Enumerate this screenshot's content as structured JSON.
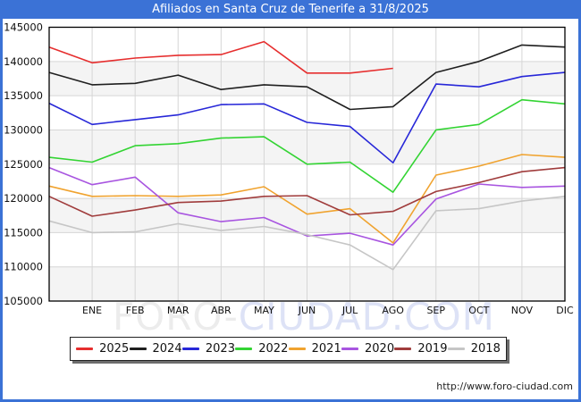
{
  "window": {
    "title": "Afiliados en Santa Cruz de Tenerife a 31/8/2025",
    "url": "http://www.foro-ciudad.com"
  },
  "colors": {
    "frame_blue": "#3b72d6",
    "band": "#f4f4f4",
    "grid": "#d6d6d6",
    "axis": "#000000",
    "tick_text": "#111111"
  },
  "watermark": {
    "left": "FORO-",
    "right": "CIUDAD.COM"
  },
  "chart_data": {
    "type": "line",
    "title": "Afiliados en Santa Cruz de Tenerife a 31/8/2025",
    "x_labels": [
      "ENE",
      "FEB",
      "MAR",
      "ABR",
      "MAY",
      "JUN",
      "JUL",
      "AGO",
      "SEP",
      "OCT",
      "NOV",
      "DIC"
    ],
    "y_ticks": [
      145000,
      140000,
      135000,
      130000,
      125000,
      120000,
      115000,
      110000,
      105000
    ],
    "ylim": [
      105000,
      145000
    ],
    "grid": true,
    "legend_position": "bottom",
    "note": "First value of each series sits on the left axis (December of previous year); following values align with ENE-DIC gridlines. The 2025 series ends at AGO (data as of 31/8/2025).",
    "series": [
      {
        "name": "2025",
        "color": "#e62e2e",
        "values": [
          142100,
          139800,
          140500,
          140900,
          141000,
          142900,
          138300,
          138300,
          139000
        ]
      },
      {
        "name": "2024",
        "color": "#1f1f1f",
        "values": [
          138400,
          136600,
          136800,
          138000,
          135900,
          136600,
          136300,
          133000,
          133400,
          138400,
          140000,
          142400,
          142100
        ]
      },
      {
        "name": "2023",
        "color": "#2727d8",
        "values": [
          133900,
          130800,
          131500,
          132200,
          133700,
          133800,
          131100,
          130500,
          125200,
          136700,
          136300,
          137800,
          138400
        ]
      },
      {
        "name": "2022",
        "color": "#33d433",
        "values": [
          126000,
          125300,
          127700,
          128000,
          128800,
          129000,
          125000,
          125300,
          120900,
          130000,
          130800,
          134400,
          133800
        ]
      },
      {
        "name": "2021",
        "color": "#f0a32f",
        "values": [
          121800,
          120300,
          120400,
          120300,
          120500,
          121700,
          117700,
          118500,
          113500,
          123400,
          124700,
          126400,
          126000
        ]
      },
      {
        "name": "2020",
        "color": "#a855e0",
        "values": [
          124500,
          122000,
          123100,
          117900,
          116600,
          117200,
          114500,
          114900,
          113200,
          119900,
          122100,
          121600,
          121800
        ]
      },
      {
        "name": "2019",
        "color": "#a03c3c",
        "values": [
          120300,
          117400,
          118300,
          119400,
          119600,
          120300,
          120400,
          117600,
          118100,
          121000,
          122300,
          123900,
          124500
        ]
      },
      {
        "name": "2018",
        "color": "#c6c6c6",
        "values": [
          116700,
          115000,
          115100,
          116300,
          115300,
          115900,
          114700,
          113200,
          109600,
          118200,
          118500,
          119600,
          120300
        ]
      }
    ]
  }
}
